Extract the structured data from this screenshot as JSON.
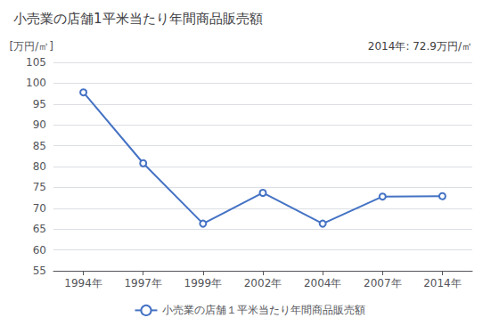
{
  "chart_data": {
    "type": "line",
    "title": "小売業の店舗1平米当たり年間商品販売額",
    "ylabel": "[万円/㎡]",
    "annotation": "2014年: 72.9万円/㎡",
    "categories": [
      "1994年",
      "1997年",
      "1999年",
      "2002年",
      "2004年",
      "2007年",
      "2014年"
    ],
    "series": [
      {
        "name": "小売業の店舗１平米当たり年間商品販売額",
        "color": "#4472C4",
        "values": [
          97.8,
          80.8,
          66.3,
          73.7,
          66.3,
          72.8,
          72.9
        ]
      }
    ],
    "marker": "circle",
    "ylim": [
      55,
      105
    ],
    "yticks": [
      55,
      60,
      65,
      70,
      75,
      80,
      85,
      90,
      95,
      100,
      105
    ],
    "grid": true,
    "legend": "bottom"
  }
}
